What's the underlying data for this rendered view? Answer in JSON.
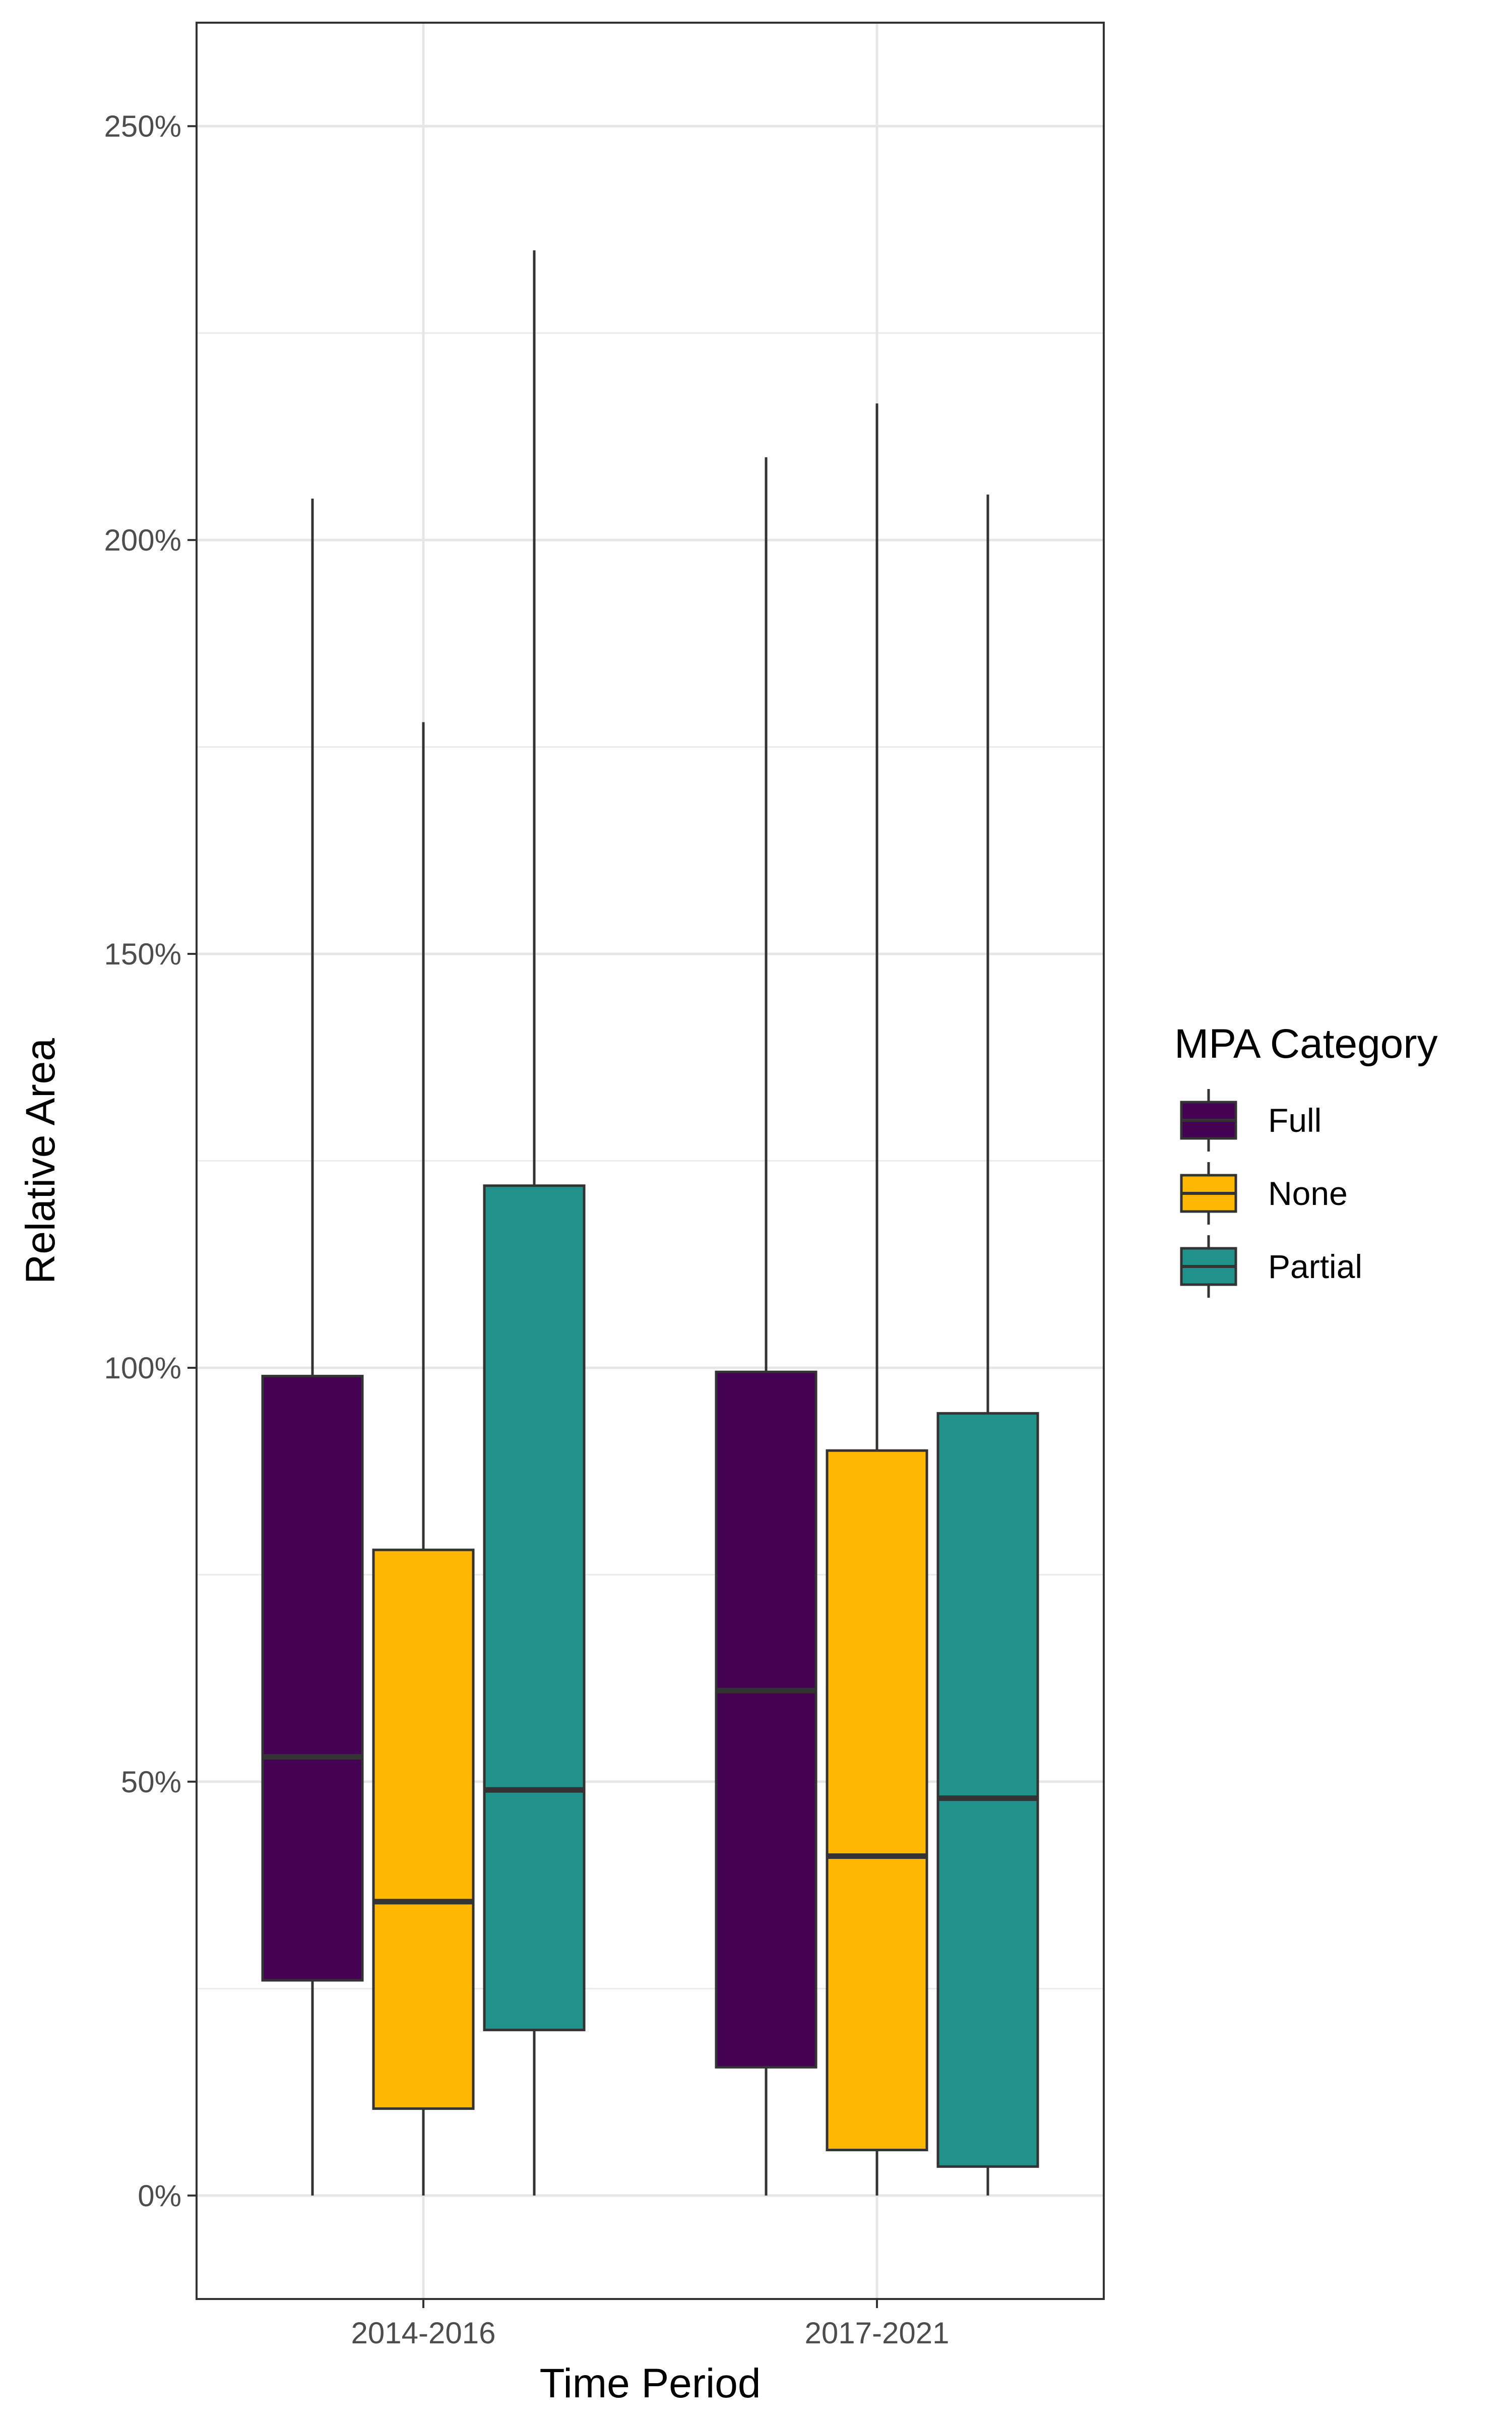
{
  "chart_data": {
    "type": "boxplot",
    "xlabel": "Time Period",
    "ylabel": "Relative Area",
    "y_tick_labels": [
      "0%",
      "50%",
      "100%",
      "150%",
      "200%",
      "250%"
    ],
    "y_ticks": [
      0,
      50,
      100,
      150,
      200,
      250
    ],
    "ylim": [
      -12.5,
      262.5
    ],
    "grid": true,
    "legend": {
      "title": "MPA Category",
      "placement": "right"
    },
    "categories": [
      "2014-2016",
      "2017-2021"
    ],
    "series": [
      {
        "name": "Full",
        "color": "#440154",
        "boxes": [
          {
            "min": 0,
            "q1": 26,
            "median": 53,
            "q3": 99,
            "max": 205
          },
          {
            "min": 0,
            "q1": 15.5,
            "median": 61,
            "q3": 99.5,
            "max": 210
          }
        ]
      },
      {
        "name": "None",
        "color": "#FFB703",
        "boxes": [
          {
            "min": 0,
            "q1": 10.5,
            "median": 35.5,
            "q3": 78,
            "max": 178
          },
          {
            "min": 0,
            "q1": 5.5,
            "median": 41,
            "q3": 90,
            "max": 216.5
          }
        ]
      },
      {
        "name": "Partial",
        "color": "#21918C",
        "boxes": [
          {
            "min": 0,
            "q1": 20,
            "median": 49,
            "q3": 122,
            "max": 235
          },
          {
            "min": 0,
            "q1": 3.5,
            "median": 48,
            "q3": 94.5,
            "max": 205.5
          }
        ]
      }
    ]
  }
}
